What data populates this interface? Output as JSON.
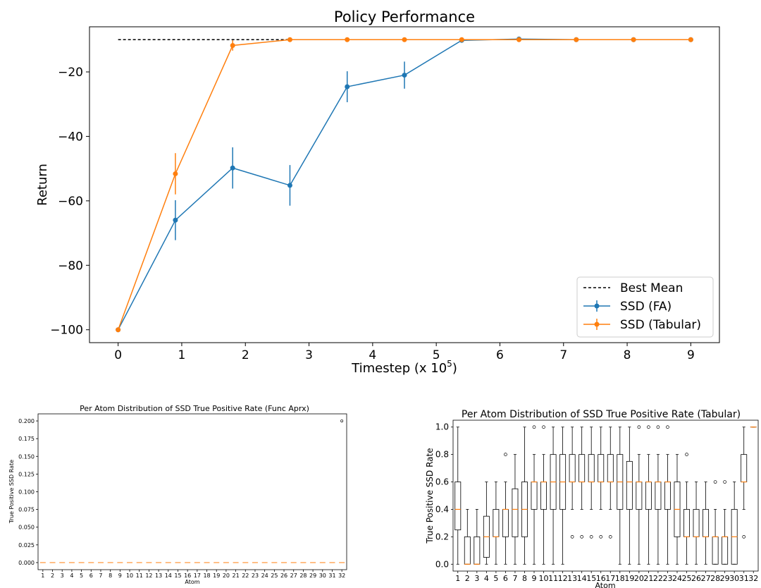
{
  "chart_data": [
    {
      "type": "line",
      "title": "Policy Performance",
      "xlabel": "Timestep (x 10",
      "xlabel_sup": "5",
      "xlabel_end": ")",
      "ylabel": "Return",
      "xlim": [
        -0.45,
        9.45
      ],
      "ylim": [
        -104,
        -6
      ],
      "xticks": [
        "0",
        "1",
        "2",
        "3",
        "4",
        "5",
        "6",
        "7",
        "8",
        "9"
      ],
      "yticks": [
        -20,
        -40,
        -60,
        -80,
        -100
      ],
      "ytick_labels": [
        "−20",
        "−40",
        "−60",
        "−80",
        "−100"
      ],
      "legend_position": "lower-right",
      "best_mean": {
        "name": "Best Mean",
        "x": [
          0,
          2.7
        ],
        "y": -10,
        "color": "#000000"
      },
      "series": [
        {
          "name": "SSD (FA)",
          "color": "#1f77b4",
          "x": [
            0,
            0.9,
            1.8,
            2.7,
            3.6,
            4.5,
            5.4,
            6.3,
            7.2,
            8.1,
            9
          ],
          "y": [
            -100,
            -66,
            -49.8,
            -55.2,
            -24.6,
            -21,
            -10.2,
            -9.8,
            -10,
            -10,
            -10
          ],
          "err": [
            0,
            6.2,
            6.4,
            6.3,
            4.8,
            4.2,
            0,
            0,
            0,
            0,
            0
          ]
        },
        {
          "name": "SSD (Tabular)",
          "color": "#ff7f0e",
          "x": [
            0,
            0.9,
            1.8,
            2.7,
            3.6,
            4.5,
            5.4,
            6.3,
            7.2,
            8.1,
            9
          ],
          "y": [
            -100,
            -51.6,
            -11.8,
            -10,
            -10,
            -10,
            -10,
            -10,
            -10,
            -10,
            -10
          ],
          "err": [
            0,
            6.4,
            1.6,
            0,
            0,
            0,
            0,
            0,
            0,
            0,
            0
          ]
        }
      ]
    },
    {
      "type": "box",
      "title": "Per Atom Distribution of SSD True Positive Rate (Func Aprx)",
      "xlabel": "Atom",
      "ylabel": "True Positive SSD Rate",
      "ylim": [
        -0.01,
        0.21
      ],
      "yticks": [
        "0.000",
        "0.025",
        "0.050",
        "0.075",
        "0.100",
        "0.125",
        "0.150",
        "0.175",
        "0.200"
      ],
      "categories": [
        "1",
        "2",
        "3",
        "4",
        "5",
        "6",
        "7",
        "8",
        "9",
        "10",
        "11",
        "12",
        "13",
        "14",
        "15",
        "16",
        "17",
        "18",
        "19",
        "20",
        "21",
        "22",
        "23",
        "24",
        "25",
        "26",
        "27",
        "28",
        "29",
        "30",
        "31",
        "32"
      ],
      "median": 0,
      "outliers": [
        {
          "atom": 32,
          "value": 0.2
        }
      ]
    },
    {
      "type": "box",
      "title": "Per Atom Distribution of SSD True Positive Rate (Tabular)",
      "xlabel": "Atom",
      "ylabel": "True Positive SSD Rate",
      "ylim": [
        -0.05,
        1.05
      ],
      "yticks": [
        "0.0",
        "0.2",
        "0.4",
        "0.6",
        "0.8",
        "1.0"
      ],
      "categories": [
        "1",
        "2",
        "3",
        "4",
        "5",
        "6",
        "7",
        "8",
        "9",
        "10",
        "11",
        "12",
        "13",
        "14",
        "15",
        "16",
        "17",
        "18",
        "19",
        "20",
        "21",
        "22",
        "23",
        "24",
        "25",
        "26",
        "27",
        "28",
        "29",
        "30",
        "31",
        "32"
      ],
      "boxes": [
        {
          "min": 0,
          "q1": 0.25,
          "med": 0.4,
          "q3": 0.6,
          "max": 1,
          "out": []
        },
        {
          "min": 0,
          "q1": 0,
          "med": 0,
          "q3": 0.2,
          "max": 0.4,
          "out": []
        },
        {
          "min": 0,
          "q1": 0,
          "med": 0,
          "q3": 0.2,
          "max": 0.4,
          "out": []
        },
        {
          "min": 0,
          "q1": 0.05,
          "med": 0.2,
          "q3": 0.35,
          "max": 0.6,
          "out": []
        },
        {
          "min": 0,
          "q1": 0.2,
          "med": 0.2,
          "q3": 0.4,
          "max": 0.6,
          "out": []
        },
        {
          "min": 0,
          "q1": 0.2,
          "med": 0.4,
          "q3": 0.4,
          "max": 0.6,
          "out": [
            0.8
          ]
        },
        {
          "min": 0,
          "q1": 0.2,
          "med": 0.4,
          "q3": 0.55,
          "max": 0.8,
          "out": []
        },
        {
          "min": 0,
          "q1": 0.2,
          "med": 0.4,
          "q3": 0.6,
          "max": 1,
          "out": []
        },
        {
          "min": 0,
          "q1": 0.4,
          "med": 0.6,
          "q3": 0.6,
          "max": 0.8,
          "out": [
            1
          ]
        },
        {
          "min": 0,
          "q1": 0.4,
          "med": 0.6,
          "q3": 0.6,
          "max": 0.8,
          "out": [
            1
          ]
        },
        {
          "min": 0,
          "q1": 0.4,
          "med": 0.6,
          "q3": 0.8,
          "max": 1,
          "out": []
        },
        {
          "min": 0,
          "q1": 0.4,
          "med": 0.6,
          "q3": 0.8,
          "max": 1,
          "out": []
        },
        {
          "min": 0.4,
          "q1": 0.6,
          "med": 0.6,
          "q3": 0.8,
          "max": 1,
          "out": [
            0.2
          ]
        },
        {
          "min": 0.4,
          "q1": 0.6,
          "med": 0.6,
          "q3": 0.8,
          "max": 1,
          "out": [
            0.2
          ]
        },
        {
          "min": 0.4,
          "q1": 0.6,
          "med": 0.6,
          "q3": 0.8,
          "max": 1,
          "out": [
            0.2
          ]
        },
        {
          "min": 0.4,
          "q1": 0.6,
          "med": 0.6,
          "q3": 0.8,
          "max": 1,
          "out": [
            0.2
          ]
        },
        {
          "min": 0.4,
          "q1": 0.6,
          "med": 0.6,
          "q3": 0.8,
          "max": 1,
          "out": [
            0.2
          ]
        },
        {
          "min": 0,
          "q1": 0.4,
          "med": 0.6,
          "q3": 0.8,
          "max": 1,
          "out": []
        },
        {
          "min": 0,
          "q1": 0.4,
          "med": 0.6,
          "q3": 0.75,
          "max": 1,
          "out": []
        },
        {
          "min": 0,
          "q1": 0.4,
          "med": 0.6,
          "q3": 0.6,
          "max": 0.8,
          "out": [
            1
          ]
        },
        {
          "min": 0,
          "q1": 0.4,
          "med": 0.6,
          "q3": 0.6,
          "max": 0.8,
          "out": [
            1
          ]
        },
        {
          "min": 0,
          "q1": 0.4,
          "med": 0.6,
          "q3": 0.6,
          "max": 0.8,
          "out": [
            1
          ]
        },
        {
          "min": 0,
          "q1": 0.4,
          "med": 0.6,
          "q3": 0.6,
          "max": 0.8,
          "out": [
            1
          ]
        },
        {
          "min": 0,
          "q1": 0.2,
          "med": 0.4,
          "q3": 0.6,
          "max": 0.8,
          "out": []
        },
        {
          "min": 0,
          "q1": 0.2,
          "med": 0.2,
          "q3": 0.4,
          "max": 0.6,
          "out": [
            0.8
          ]
        },
        {
          "min": 0,
          "q1": 0.2,
          "med": 0.2,
          "q3": 0.4,
          "max": 0.6,
          "out": []
        },
        {
          "min": 0,
          "q1": 0.2,
          "med": 0.2,
          "q3": 0.4,
          "max": 0.6,
          "out": []
        },
        {
          "min": 0,
          "q1": 0,
          "med": 0.2,
          "q3": 0.2,
          "max": 0.4,
          "out": [
            0.6
          ]
        },
        {
          "min": 0,
          "q1": 0,
          "med": 0.2,
          "q3": 0.2,
          "max": 0.4,
          "out": [
            0.6
          ]
        },
        {
          "min": 0,
          "q1": 0,
          "med": 0.2,
          "q3": 0.4,
          "max": 0.6,
          "out": []
        },
        {
          "min": 0.4,
          "q1": 0.6,
          "med": 0.6,
          "q3": 0.8,
          "max": 1,
          "out": [
            0.2
          ]
        },
        {
          "min": 1,
          "q1": 1,
          "med": 1,
          "q3": 1,
          "max": 1,
          "out": []
        }
      ]
    }
  ]
}
